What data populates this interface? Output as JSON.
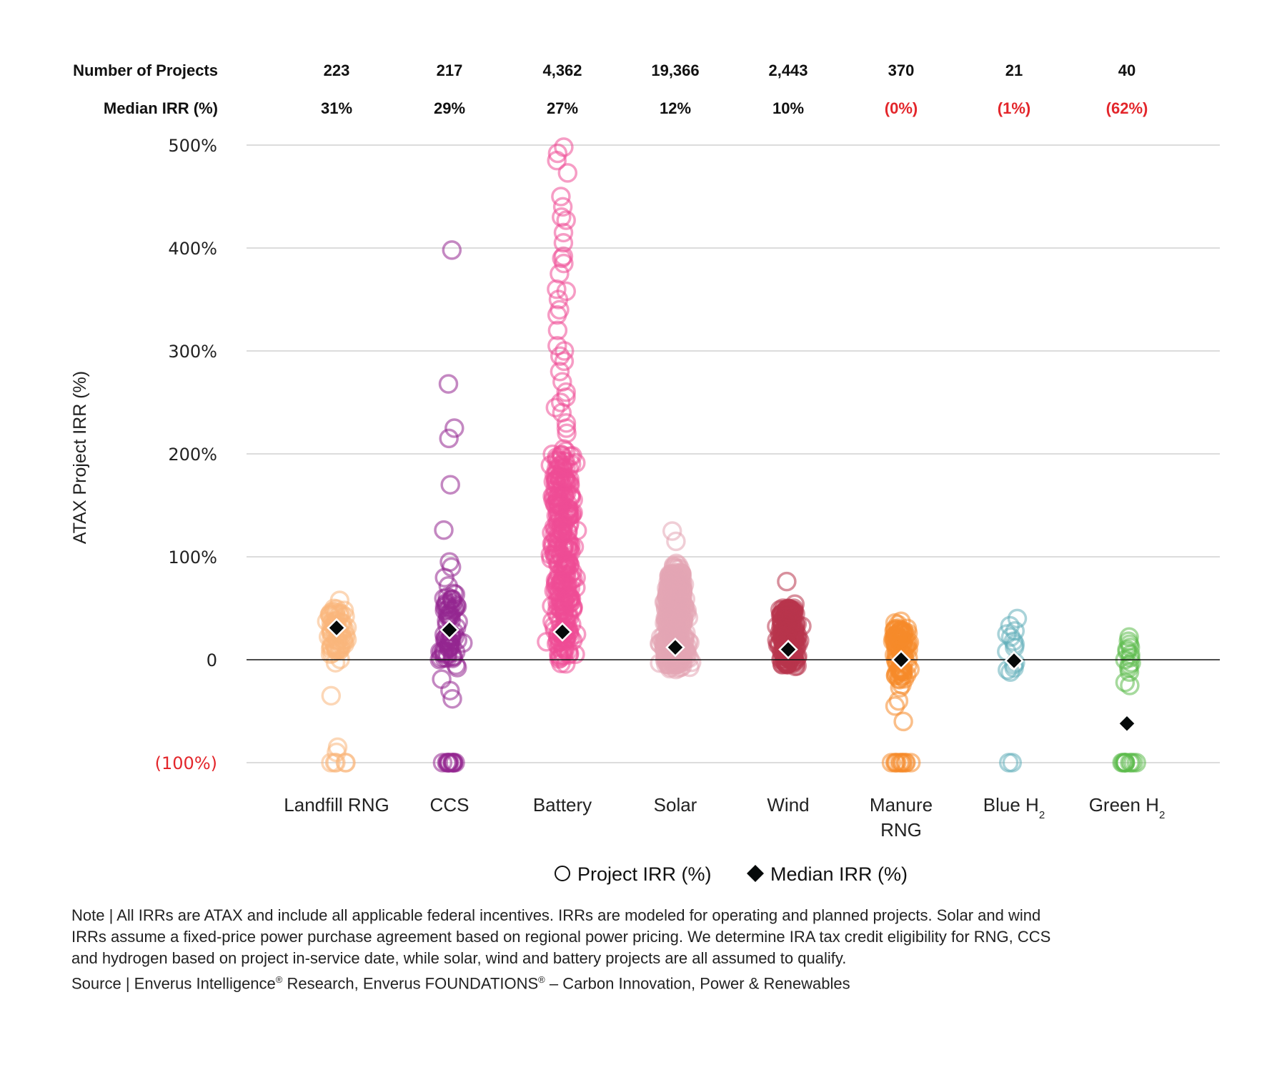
{
  "chart_data": {
    "type": "scatter",
    "subtype": "jittered strip plot",
    "header_rows": [
      {
        "label": "Number of Projects",
        "values": [
          "223",
          "217",
          "4,362",
          "19,366",
          "2,443",
          "370",
          "21",
          "40"
        ]
      },
      {
        "label": "Median IRR (%)",
        "values": [
          "31%",
          "29%",
          "27%",
          "12%",
          "10%",
          "(0%)",
          "(1%)",
          "(62%)"
        ],
        "negative_flags": [
          false,
          false,
          false,
          false,
          false,
          true,
          true,
          true
        ]
      }
    ],
    "ylabel": "ATAX Project IRR (%)",
    "ylim": [
      -100,
      500
    ],
    "yticks": [
      {
        "value": 500,
        "label": "500%"
      },
      {
        "value": 400,
        "label": "400%"
      },
      {
        "value": 300,
        "label": "300%"
      },
      {
        "value": 200,
        "label": "200%"
      },
      {
        "value": 100,
        "label": "100%"
      },
      {
        "value": 0,
        "label": "0"
      },
      {
        "value": -100,
        "label": "(100%)",
        "negative": true
      }
    ],
    "grid": true,
    "categories": [
      {
        "label": "Landfill RNG",
        "sub": "",
        "line2": "",
        "color": "#f9b77c",
        "count": 223,
        "median": 31,
        "cluster": {
          "lo": -5,
          "hi": 60,
          "dense_lo": 5,
          "dense_hi": 50,
          "spread": 1.0
        },
        "outliers": [
          -35,
          -85,
          -90,
          -100,
          -100,
          -100,
          -100,
          -100
        ]
      },
      {
        "label": "CCS",
        "sub": "",
        "line2": "",
        "color": "#93278f",
        "count": 217,
        "median": 29,
        "cluster": {
          "lo": -20,
          "hi": 80,
          "dense_lo": 0,
          "dense_hi": 65,
          "spread": 1.0
        },
        "outliers": [
          398,
          268,
          225,
          215,
          170,
          126,
          95,
          90,
          -30,
          -38,
          -100,
          -100,
          -100,
          -100,
          -100,
          -100,
          -100,
          -100,
          -100,
          -100,
          -100
        ]
      },
      {
        "label": "Battery",
        "sub": "",
        "line2": "",
        "color": "#ee4c96",
        "count": 4362,
        "median": 27,
        "cluster": {
          "lo": -5,
          "hi": 215,
          "dense_lo": 0,
          "dense_hi": 200,
          "spread": 1.2
        },
        "outliers": [
          498,
          492,
          485,
          473,
          450,
          440,
          430,
          427,
          415,
          405,
          392,
          390,
          385,
          375,
          360,
          358,
          350,
          340,
          335,
          320,
          305,
          300,
          295,
          290,
          280,
          270,
          260,
          255,
          250,
          245,
          240,
          230,
          225,
          220
        ]
      },
      {
        "label": "Solar",
        "sub": "",
        "line2": "",
        "color": "#e3a6b4",
        "count": 19366,
        "median": 12,
        "cluster": {
          "lo": -10,
          "hi": 95,
          "dense_lo": -5,
          "dense_hi": 85,
          "spread": 1.3,
          "taper": true
        },
        "outliers": [
          125,
          115
        ]
      },
      {
        "label": "Wind",
        "sub": "",
        "line2": "",
        "color": "#b8344c",
        "count": 2443,
        "median": 10,
        "cluster": {
          "lo": -10,
          "hi": 55,
          "dense_lo": -5,
          "dense_hi": 50,
          "spread": 1.05
        },
        "outliers": [
          76,
          50
        ]
      },
      {
        "label": "Manure",
        "sub": "",
        "line2": "RNG",
        "color": "#f58b2a",
        "count": 370,
        "median": 0,
        "cluster": {
          "lo": -30,
          "hi": 38,
          "dense_lo": -20,
          "dense_hi": 32,
          "spread": 0.9
        },
        "outliers": [
          -15,
          -40,
          -45,
          -60,
          -100,
          -100,
          -100,
          -100,
          -100,
          -100,
          -100,
          -100,
          -100,
          -100,
          -100
        ]
      },
      {
        "label": "Blue H",
        "sub": "2",
        "line2": "",
        "color": "#63aeb9",
        "count": 21,
        "median": -1,
        "cluster": null,
        "outliers": [
          40,
          33,
          28,
          25,
          22,
          18,
          15,
          12,
          8,
          -3,
          -5,
          -8,
          -10,
          -12,
          -100,
          -100
        ]
      },
      {
        "label": "Green H",
        "sub": "2",
        "line2": "",
        "color": "#5cbc4c",
        "count": 40,
        "median": -62,
        "cluster": null,
        "outliers": [
          22,
          18,
          15,
          12,
          10,
          8,
          5,
          2,
          0,
          -3,
          -5,
          -8,
          -12,
          -22,
          -25,
          -100,
          -100,
          -100,
          -100,
          -100,
          -100,
          -100,
          -100,
          -100,
          -100
        ]
      }
    ],
    "legend": {
      "position": "bottom-center",
      "items": [
        {
          "label": "Project IRR (%)",
          "marker": "open-circle-icon"
        },
        {
          "label": "Median IRR (%)",
          "marker": "filled-diamond-icon"
        }
      ]
    }
  },
  "footnote": {
    "note_prefix": "Note | ",
    "note": "All IRRs are ATAX and include all applicable federal incentives. IRRs are modeled for operating and planned projects. Solar and wind IRRs assume a fixed-price power purchase agreement based on regional power pricing. We determine IRA tax credit eligibility for RNG, CCS and hydrogen based on project in-service date, while solar, wind and battery projects are all assumed to qualify.",
    "source_prefix": "Source | ",
    "source_part1": "Enverus Intelligence",
    "source_reg1": "®",
    "source_part2": " Research, Enverus FOUNDATIONS",
    "source_reg2": "®",
    "source_part3": " – Carbon Innovation, Power & Renewables"
  },
  "colors": {
    "negative_text": "#e3262b",
    "median_marker": "#060a0a"
  }
}
